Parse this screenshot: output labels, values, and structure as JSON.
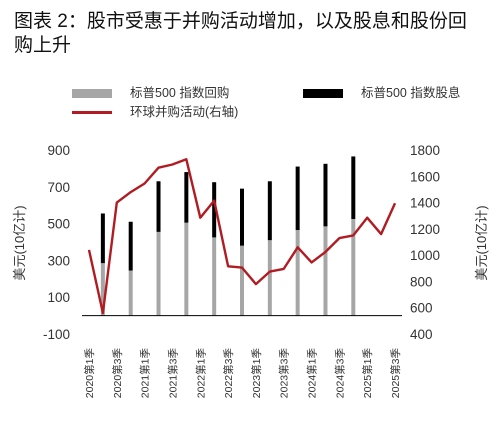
{
  "title": "图表 2：股市受惠于并购活动增加，以及股息和股份回购上升",
  "legend": [
    {
      "label": "标普500 指数回购",
      "kind": "bar",
      "color": "#a6a6a6"
    },
    {
      "label": "标普500 指数股息",
      "kind": "bar",
      "color": "#000000"
    },
    {
      "label": "环球并购活动(右轴)",
      "kind": "line",
      "color": "#b01c22"
    }
  ],
  "chart_data": {
    "type": "bar",
    "categories": [
      "2020第1季",
      "2020第2季",
      "2020第3季",
      "2020第4季",
      "2021第1季",
      "2021第2季",
      "2021第3季",
      "2021第4季",
      "2022第1季",
      "2022第2季",
      "2022第3季",
      "2022第4季",
      "2023第1季",
      "2023第2季",
      "2023第3季",
      "2023第4季",
      "2024第1季",
      "2024第2季",
      "2024第3季",
      "2024第4季",
      "2025第1季",
      "2025第2季",
      "2025第3季"
    ],
    "tick_labels": [
      "2020第1季",
      "2020第3季",
      "2021第1季",
      "2021第3季",
      "2022第1季",
      "2022第3季",
      "2023第1季",
      "2023第3季",
      "2024第1季",
      "2024第3季",
      "2025第1季",
      "2025第3季"
    ],
    "stacked": true,
    "series": [
      {
        "name": "标普500 指数回购",
        "axis": "left",
        "color": "#a6a6a6",
        "values": [
          null,
          285,
          null,
          245,
          null,
          455,
          null,
          505,
          null,
          425,
          null,
          380,
          null,
          410,
          null,
          465,
          null,
          485,
          null,
          525,
          null,
          null,
          null
        ]
      },
      {
        "name": "标普500 指数股息",
        "axis": "left",
        "color": "#000000",
        "values": [
          null,
          270,
          null,
          265,
          null,
          275,
          null,
          275,
          null,
          300,
          null,
          310,
          null,
          320,
          null,
          345,
          null,
          340,
          null,
          340,
          null,
          null,
          null
        ]
      },
      {
        "name": "环球并购活动(右轴)",
        "type": "line",
        "axis": "right",
        "color": "#b01c22",
        "values": [
          1040,
          560,
          1400,
          1480,
          1545,
          1665,
          1690,
          1730,
          1285,
          1415,
          915,
          905,
          780,
          875,
          895,
          1060,
          945,
          1025,
          1130,
          1150,
          1285,
          1160,
          1395
        ]
      }
    ],
    "y_left": {
      "label": "美元(10亿计)",
      "min": -100,
      "max": 900,
      "ticks": [
        -100,
        100,
        300,
        500,
        700,
        900
      ]
    },
    "y_right": {
      "label": "美元(10亿计)",
      "min": 400,
      "max": 1800,
      "ticks": [
        400,
        600,
        800,
        1000,
        1200,
        1400,
        1600,
        1800
      ]
    },
    "grid": false
  }
}
